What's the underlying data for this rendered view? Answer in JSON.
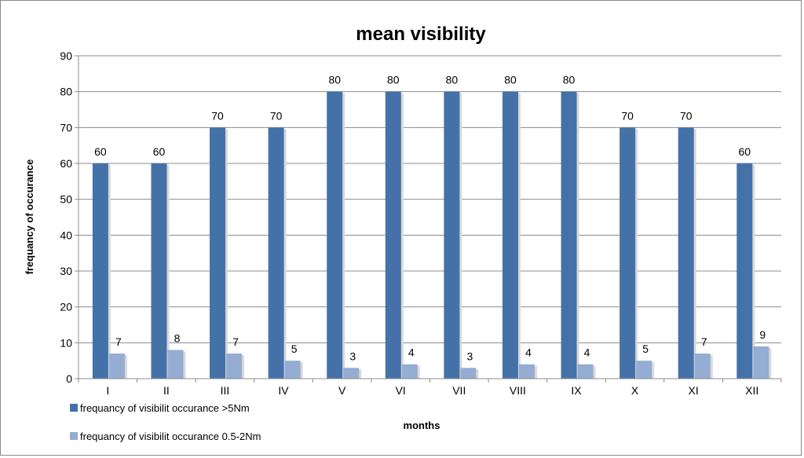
{
  "chart_data": {
    "type": "bar",
    "title": "mean visibility",
    "xlabel": "months",
    "ylabel": "frequancy of occurance",
    "categories": [
      "I",
      "II",
      "III",
      "IV",
      "V",
      "VI",
      "VII",
      "VIII",
      "IX",
      "X",
      "XI",
      "XII"
    ],
    "ylim": [
      0,
      90
    ],
    "yticks": [
      0,
      10,
      20,
      30,
      40,
      50,
      60,
      70,
      80,
      90
    ],
    "grid": true,
    "legend_position": "bottom-left",
    "series": [
      {
        "name": "frequancy of visibilit occurance >5Nm",
        "color": "#4472a8",
        "values": [
          60,
          60,
          70,
          70,
          80,
          80,
          80,
          80,
          80,
          70,
          70,
          60
        ],
        "labels": [
          "60",
          "60",
          "70",
          "70",
          "80",
          "80",
          "80",
          "80",
          "80",
          "70",
          "70",
          "60"
        ]
      },
      {
        "name": "frequancy of visibilit occurance 0.5-2Nm",
        "color": "#95acd3",
        "values": [
          7,
          8,
          7,
          5,
          3,
          4,
          3,
          4,
          4,
          5,
          7,
          9
        ],
        "labels": [
          "7",
          "8",
          "7",
          "5",
          "3",
          "4",
          "3",
          "4",
          "4",
          "5",
          "7",
          "9"
        ]
      }
    ]
  }
}
